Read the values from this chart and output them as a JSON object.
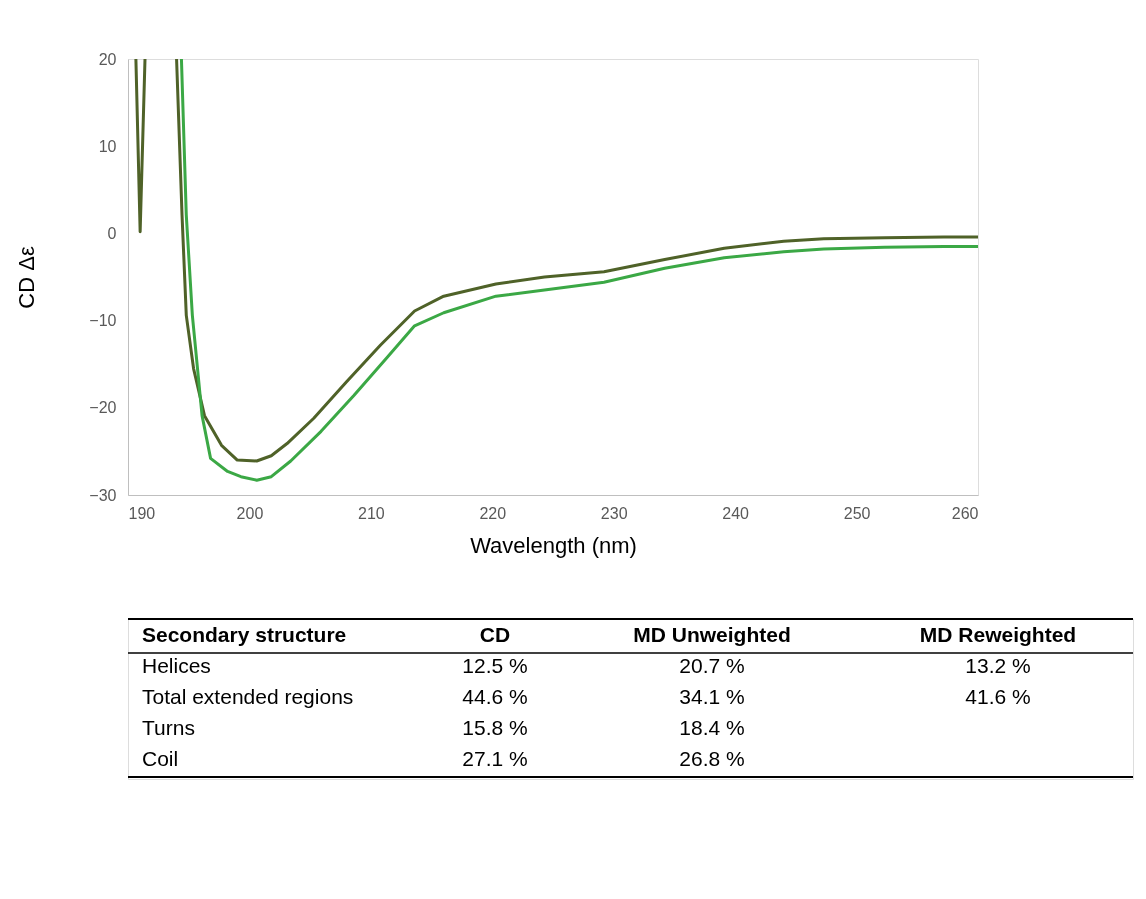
{
  "chart_data": [
    {
      "type": "line",
      "xlabel": "Wavelength (nm)",
      "ylabel": "CD Δε",
      "xlim": [
        190,
        260
      ],
      "xticks": [
        190,
        200,
        210,
        220,
        230,
        240,
        250,
        260
      ],
      "ylim": [
        -30,
        20
      ],
      "yticks": [
        -30,
        -20,
        -10,
        0,
        10,
        20
      ],
      "grid": false,
      "legend": false,
      "series": [
        {
          "color": "#4f6228",
          "x": [
            190.65,
            191.0,
            191.4,
            192.7,
            194.0,
            194.45,
            194.8,
            195.4,
            196.3,
            197.7,
            199.0,
            200.6,
            201.8,
            203.1,
            205.3,
            208.0,
            210.8,
            213.6,
            216.0,
            220.3,
            224.3,
            229.2,
            234.2,
            239.1,
            244.0,
            247.3,
            252.3,
            257.2,
            260.0
          ],
          "values": [
            20,
            0.2,
            20,
            null,
            20,
            2.1,
            -9.4,
            -15.5,
            -20.9,
            -24.3,
            -26.0,
            -26.1,
            -25.5,
            -24.1,
            -21.2,
            -17.0,
            -12.8,
            -8.9,
            -7.2,
            -5.8,
            -5.0,
            -4.4,
            -3.0,
            -1.7,
            -0.9,
            -0.6,
            -0.5,
            -0.4,
            -0.4
          ]
        },
        {
          "color": "#3ba845",
          "x": [
            194.4,
            194.8,
            195.3,
            196.1,
            196.8,
            198.2,
            199.3,
            200.6,
            201.8,
            203.4,
            205.9,
            208.6,
            211.3,
            213.6,
            216.0,
            220.3,
            224.3,
            229.2,
            234.2,
            239.1,
            244.0,
            247.3,
            252.3,
            257.2,
            260.0
          ],
          "values": [
            20,
            2.1,
            -9.4,
            -20.9,
            -25.8,
            -27.3,
            -27.9,
            -28.3,
            -27.9,
            -26.1,
            -22.7,
            -18.6,
            -14.3,
            -10.6,
            -9.1,
            -7.2,
            -6.5,
            -5.6,
            -4.0,
            -2.8,
            -2.1,
            -1.8,
            -1.6,
            -1.5,
            -1.5
          ]
        }
      ]
    },
    {
      "type": "other",
      "ylabel": "Secondary structure",
      "categories": [
        "CD",
        "MD Unweighted",
        "MD Reweighted"
      ],
      "y_categories": [
        "Helices",
        "Total extended regions",
        "Turns",
        "Coil"
      ],
      "cell_labels": [
        [
          "12.5 %",
          "20.7 %",
          "13.2 %"
        ],
        [
          "44.6 %",
          "34.1 %",
          "41.6 %"
        ],
        [
          "15.8 %",
          "18.4 %",
          null
        ],
        [
          "27.1 %",
          "26.8 %",
          null
        ]
      ]
    }
  ]
}
